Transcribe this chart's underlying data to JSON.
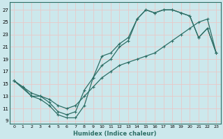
{
  "xlabel": "Humidex (Indice chaleur)",
  "bg_color": "#cce8ec",
  "grid_color": "#e8c8c8",
  "line_color": "#2d6e65",
  "xlim": [
    -0.5,
    23.5
  ],
  "ylim": [
    8.5,
    28.2
  ],
  "xticks": [
    0,
    1,
    2,
    3,
    4,
    5,
    6,
    7,
    8,
    9,
    10,
    11,
    12,
    13,
    14,
    15,
    16,
    17,
    18,
    19,
    20,
    21,
    22,
    23
  ],
  "yticks": [
    9,
    11,
    13,
    15,
    17,
    19,
    21,
    23,
    25,
    27
  ],
  "curve1_x": [
    0,
    1,
    2,
    3,
    4,
    5,
    6,
    7,
    8,
    9,
    10,
    11,
    12,
    13,
    14,
    15,
    16,
    17,
    18,
    19,
    20,
    21,
    22,
    23
  ],
  "curve1_y": [
    15.5,
    14.5,
    13.0,
    12.5,
    11.5,
    10.0,
    9.5,
    9.5,
    11.5,
    16.0,
    19.5,
    20.0,
    21.5,
    22.5,
    25.5,
    27.0,
    26.5,
    27.0,
    27.0,
    26.5,
    26.0,
    22.5,
    24.0,
    20.0
  ],
  "curve2_x": [
    0,
    2,
    3,
    4,
    5,
    6,
    7,
    8,
    9,
    10,
    11,
    12,
    13,
    14,
    15,
    16,
    17,
    18,
    19,
    20,
    21,
    22,
    23
  ],
  "curve2_y": [
    15.5,
    13.0,
    13.0,
    12.0,
    10.5,
    10.0,
    10.5,
    14.0,
    16.0,
    18.0,
    19.0,
    21.0,
    22.0,
    25.5,
    27.0,
    26.5,
    27.0,
    27.0,
    26.5,
    26.0,
    22.5,
    24.0,
    20.0
  ],
  "curve3_x": [
    0,
    1,
    2,
    3,
    4,
    5,
    6,
    7,
    8,
    9,
    10,
    11,
    12,
    13,
    14,
    15,
    16,
    17,
    18,
    19,
    20,
    21,
    22,
    23
  ],
  "curve3_y": [
    15.5,
    14.5,
    13.5,
    13.0,
    12.5,
    11.5,
    11.0,
    11.5,
    13.0,
    14.5,
    16.0,
    17.0,
    18.0,
    18.5,
    19.0,
    19.5,
    20.0,
    21.0,
    22.0,
    23.0,
    24.0,
    25.0,
    25.5,
    20.0
  ]
}
